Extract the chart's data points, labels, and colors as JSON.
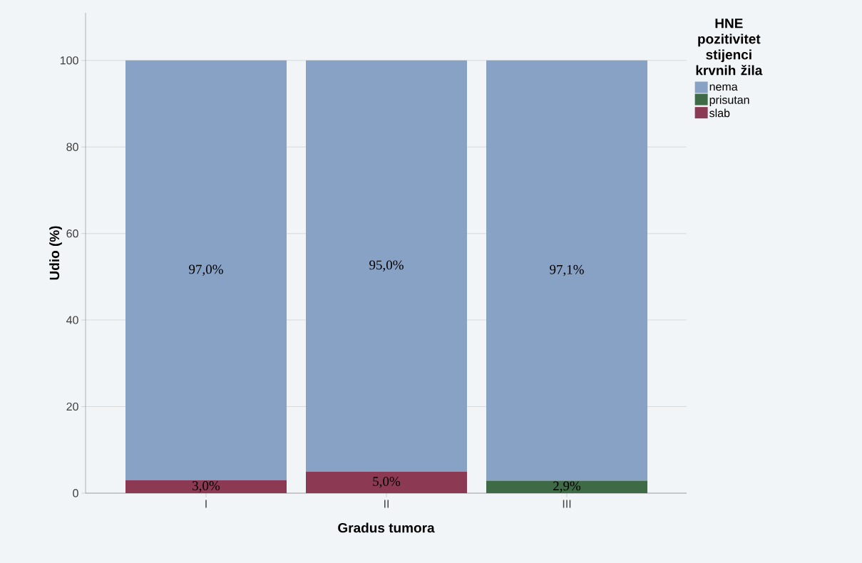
{
  "chart_data": {
    "type": "bar",
    "stacked": true,
    "xlabel": "Gradus tumora",
    "ylabel": "Udio (%)",
    "legend_title": "HNE pozitivitet stijenci krvnih žila",
    "categories": [
      "I",
      "II",
      "III"
    ],
    "series": [
      {
        "name": "slab",
        "color": "#8c3a54",
        "values": [
          3.0,
          5.0,
          0
        ],
        "value_labels": [
          "3,0%",
          "5,0%",
          null
        ]
      },
      {
        "name": "prisutan",
        "color": "#3e6b45",
        "values": [
          0,
          0,
          2.9
        ],
        "value_labels": [
          null,
          null,
          "2,9%"
        ]
      },
      {
        "name": "nema",
        "color": "#87a2c4",
        "values": [
          97.0,
          95.0,
          97.1
        ],
        "value_labels": [
          "97,0%",
          "95,0%",
          "97,1%"
        ]
      }
    ],
    "ylim": [
      0,
      111
    ],
    "yticks": [
      0,
      20,
      40,
      60,
      80,
      100
    ],
    "grid": "y",
    "legend": "right"
  }
}
